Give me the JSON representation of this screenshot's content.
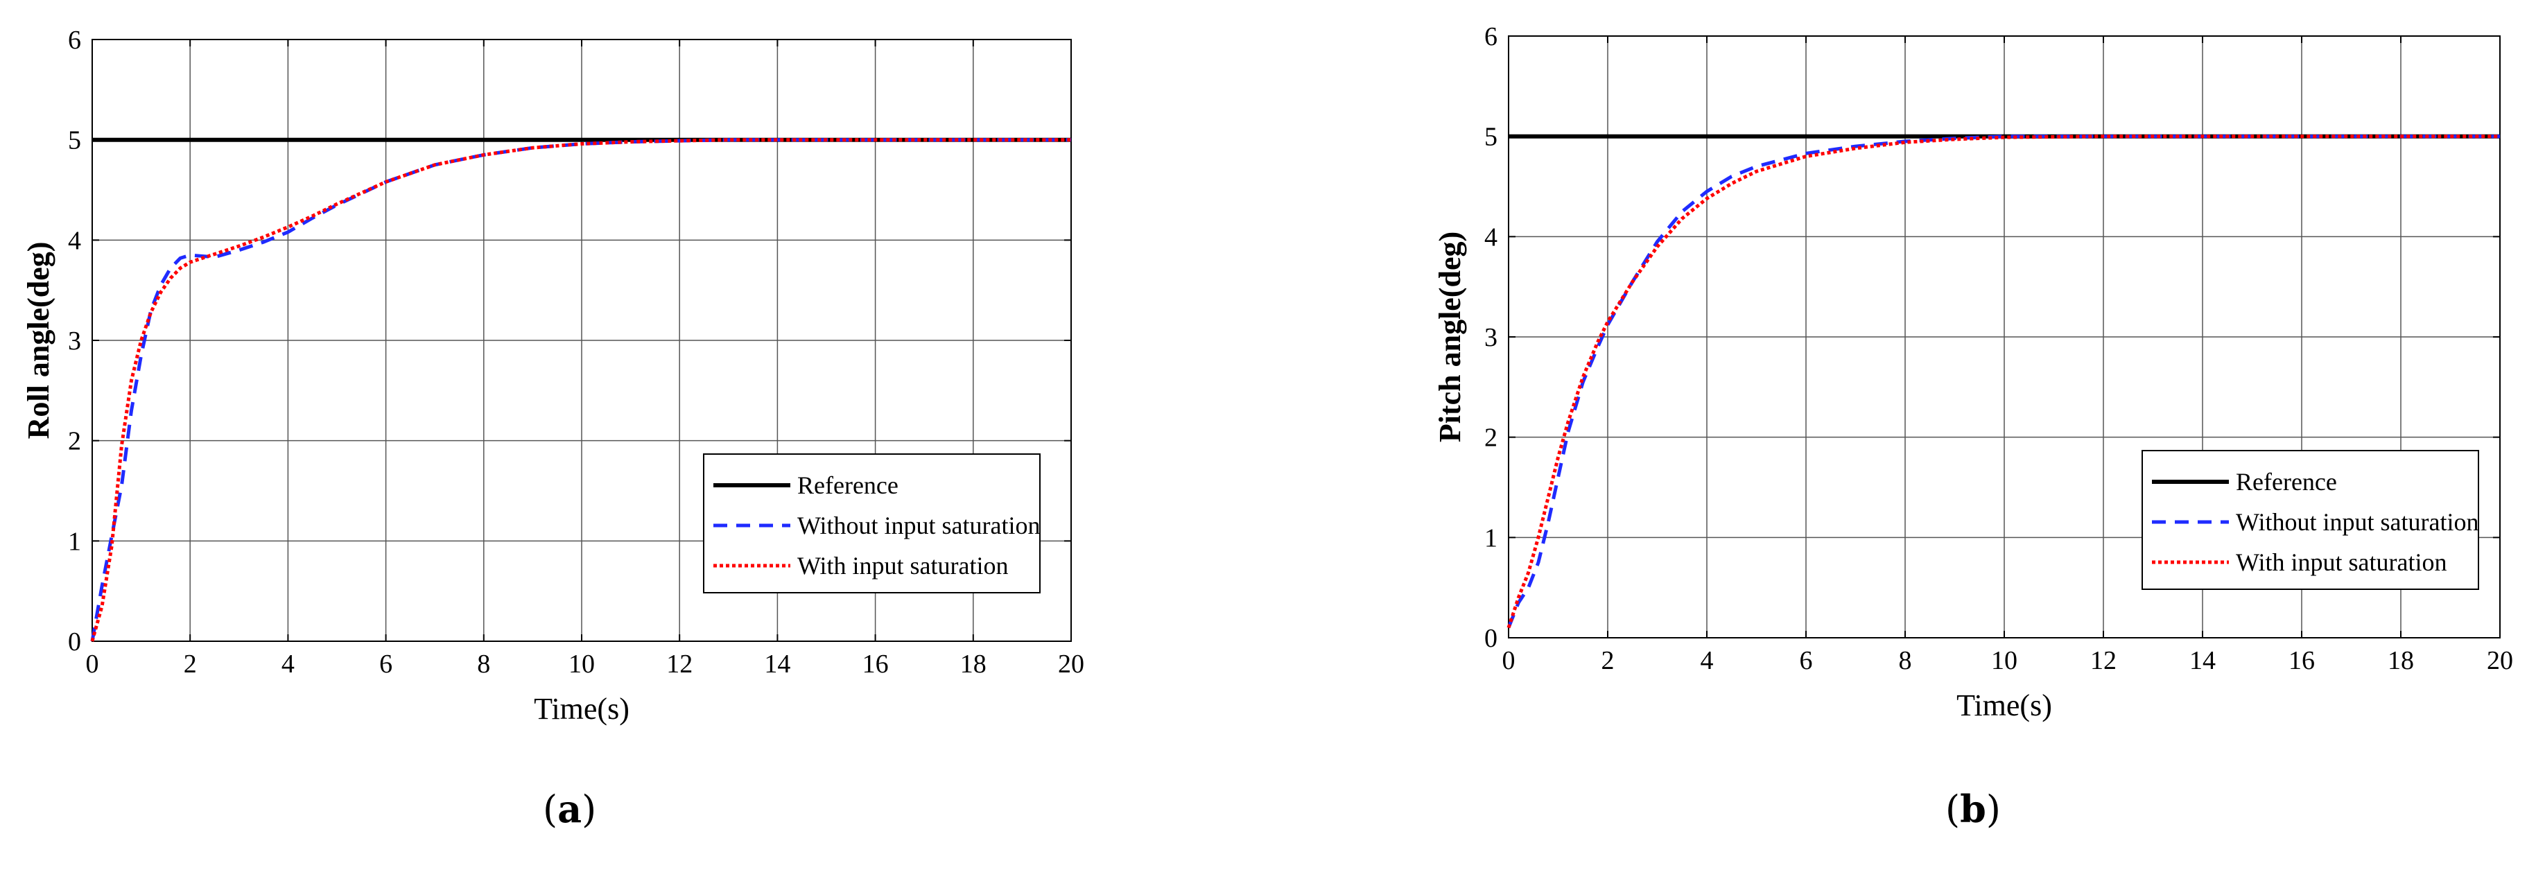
{
  "colors": {
    "reference": "#000000",
    "without": "#1f2bff",
    "with": "#ff0000",
    "grid": "#555555",
    "frame": "#000000"
  },
  "legend": {
    "reference": "Reference",
    "without": "Without input saturation",
    "with": "With input saturation"
  },
  "panels": {
    "a": {
      "label_open": "(",
      "label_letter": "a",
      "label_close": ")"
    },
    "b": {
      "label_open": "(",
      "label_letter": "b",
      "label_close": ")"
    }
  },
  "chart_data": [
    {
      "type": "line",
      "title": "",
      "xlabel": "Time(s)",
      "ylabel": "Roll angle(deg)",
      "xlim": [
        0,
        20
      ],
      "ylim": [
        0,
        6
      ],
      "xticks": [
        0,
        2,
        4,
        6,
        8,
        10,
        12,
        14,
        16,
        18,
        20
      ],
      "yticks": [
        0,
        1,
        2,
        3,
        4,
        5,
        6
      ],
      "grid": true,
      "legend_position": "lower-right",
      "series": [
        {
          "name": "Reference",
          "style": "solid",
          "x": [
            0,
            20
          ],
          "y": [
            5,
            5
          ]
        },
        {
          "name": "Without input saturation",
          "style": "dashed",
          "x": [
            0,
            0.2,
            0.4,
            0.6,
            0.8,
            1.0,
            1.2,
            1.4,
            1.6,
            1.8,
            2.0,
            2.5,
            3.0,
            3.5,
            4.0,
            4.5,
            5.0,
            6.0,
            7.0,
            8.0,
            9.0,
            10.0,
            11.0,
            12.0,
            13.0,
            14.0,
            16.0,
            18.0,
            20.0
          ],
          "y": [
            0,
            0.55,
            1.05,
            1.55,
            2.3,
            2.85,
            3.3,
            3.55,
            3.72,
            3.82,
            3.85,
            3.83,
            3.9,
            3.98,
            4.08,
            4.22,
            4.35,
            4.58,
            4.75,
            4.85,
            4.92,
            4.96,
            4.98,
            4.99,
            5.0,
            5.0,
            5.0,
            5.0,
            5.0
          ]
        },
        {
          "name": "With input saturation",
          "style": "dotted",
          "x": [
            0,
            0.2,
            0.4,
            0.6,
            0.8,
            1.0,
            1.2,
            1.4,
            1.6,
            1.8,
            2.0,
            2.5,
            3.0,
            3.5,
            4.0,
            4.5,
            5.0,
            6.0,
            7.0,
            8.0,
            9.0,
            10.0,
            11.0,
            12.0,
            13.0,
            14.0,
            16.0,
            18.0,
            20.0
          ],
          "y": [
            0,
            0.35,
            0.95,
            1.95,
            2.6,
            3.0,
            3.28,
            3.48,
            3.62,
            3.72,
            3.78,
            3.86,
            3.94,
            4.03,
            4.13,
            4.24,
            4.36,
            4.58,
            4.75,
            4.85,
            4.92,
            4.96,
            4.98,
            4.99,
            5.0,
            5.0,
            5.0,
            5.0,
            5.0
          ]
        }
      ]
    },
    {
      "type": "line",
      "title": "",
      "xlabel": "Time(s)",
      "ylabel": "Pitch angle(deg)",
      "xlim": [
        0,
        20
      ],
      "ylim": [
        0,
        6
      ],
      "xticks": [
        0,
        2,
        4,
        6,
        8,
        10,
        12,
        14,
        16,
        18,
        20
      ],
      "yticks": [
        0,
        1,
        2,
        3,
        4,
        5,
        6
      ],
      "grid": true,
      "legend_position": "lower-right",
      "series": [
        {
          "name": "Reference",
          "style": "solid",
          "x": [
            0,
            20
          ],
          "y": [
            5,
            5
          ]
        },
        {
          "name": "Without input saturation",
          "style": "dashed",
          "x": [
            0,
            0.2,
            0.4,
            0.6,
            0.8,
            1.0,
            1.2,
            1.5,
            1.8,
            2.0,
            2.5,
            3.0,
            3.5,
            4.0,
            4.5,
            5.0,
            6.0,
            7.0,
            8.0,
            9.0,
            10.0,
            12.0,
            14.0,
            16.0,
            18.0,
            20.0
          ],
          "y": [
            0.1,
            0.35,
            0.5,
            0.75,
            1.15,
            1.6,
            2.05,
            2.55,
            2.9,
            3.12,
            3.55,
            3.95,
            4.25,
            4.45,
            4.6,
            4.7,
            4.83,
            4.9,
            4.95,
            4.98,
            5.0,
            5.0,
            5.0,
            5.0,
            5.0,
            5.0
          ]
        },
        {
          "name": "With input saturation",
          "style": "dotted",
          "x": [
            0,
            0.2,
            0.4,
            0.6,
            0.8,
            1.0,
            1.2,
            1.5,
            1.8,
            2.0,
            2.5,
            3.0,
            3.5,
            4.0,
            4.5,
            5.0,
            6.0,
            7.0,
            8.0,
            9.0,
            10.0,
            12.0,
            14.0,
            16.0,
            18.0,
            20.0
          ],
          "y": [
            0.1,
            0.4,
            0.65,
            1.0,
            1.4,
            1.8,
            2.15,
            2.6,
            2.95,
            3.15,
            3.55,
            3.9,
            4.18,
            4.38,
            4.53,
            4.65,
            4.8,
            4.88,
            4.94,
            4.97,
            4.99,
            5.0,
            5.0,
            5.0,
            5.0,
            5.0
          ]
        }
      ]
    }
  ]
}
